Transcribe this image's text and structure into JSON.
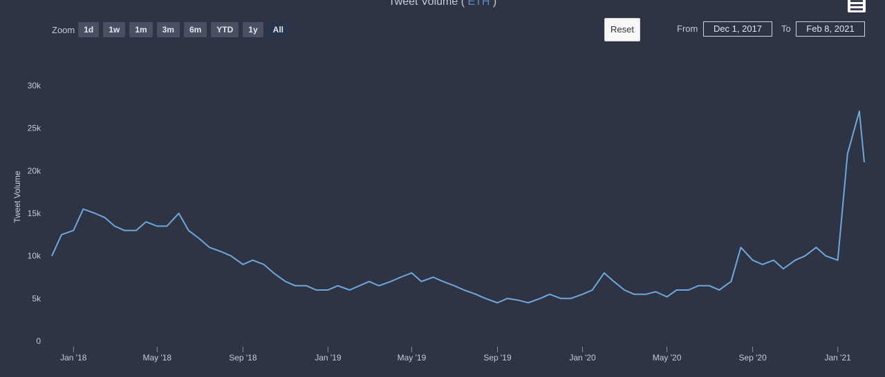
{
  "header": {
    "title_prefix": "Tweet Volume ( ",
    "title_symbol": "ETH",
    "title_suffix": " )",
    "menu_icon": "hamburger-menu-icon"
  },
  "toolbar": {
    "zoom_label": "Zoom",
    "zoom_buttons": [
      "1d",
      "1w",
      "1m",
      "3m",
      "6m",
      "YTD",
      "1y",
      "All"
    ],
    "active_zoom": "All",
    "reset_label": "Reset",
    "from_label": "From",
    "from_value": "Dec 1, 2017",
    "to_label": "To",
    "to_value": "Feb 8, 2021"
  },
  "colors": {
    "background": "#2f3444",
    "series": "#6fa8dc",
    "symbol_accent": "#5b8ecb"
  },
  "chart_data": {
    "type": "line",
    "title": "Tweet Volume ( ETH )",
    "ylabel": "Tweet Volume",
    "xlabel": "",
    "ylim": [
      0,
      32000
    ],
    "y_ticks": [
      "0",
      "5k",
      "10k",
      "15k",
      "20k",
      "25k",
      "30k"
    ],
    "x_ticks": [
      "Jan '18",
      "May '18",
      "Sep '18",
      "Jan '19",
      "May '19",
      "Sep '19",
      "Jan '20",
      "May '20",
      "Sep '20",
      "Jan '21"
    ],
    "grid": false,
    "x_start": "2017-12-01",
    "x_end": "2021-02-08",
    "series": [
      {
        "x": [
          "2017-12-01",
          "2017-12-15",
          "2018-01-01",
          "2018-01-15",
          "2018-02-01",
          "2018-02-15",
          "2018-03-01",
          "2018-03-15",
          "2018-04-01",
          "2018-04-15",
          "2018-05-01",
          "2018-05-15",
          "2018-06-01",
          "2018-06-15",
          "2018-07-01",
          "2018-07-15",
          "2018-08-01",
          "2018-08-15",
          "2018-09-01",
          "2018-09-15",
          "2018-10-01",
          "2018-10-15",
          "2018-11-01",
          "2018-11-15",
          "2018-12-01",
          "2018-12-15",
          "2019-01-01",
          "2019-01-15",
          "2019-02-01",
          "2019-02-15",
          "2019-03-01",
          "2019-03-15",
          "2019-04-01",
          "2019-04-15",
          "2019-05-01",
          "2019-05-15",
          "2019-06-01",
          "2019-06-15",
          "2019-07-01",
          "2019-07-15",
          "2019-08-01",
          "2019-08-15",
          "2019-09-01",
          "2019-09-15",
          "2019-10-01",
          "2019-10-15",
          "2019-11-01",
          "2019-11-15",
          "2019-12-01",
          "2019-12-15",
          "2020-01-01",
          "2020-01-15",
          "2020-02-01",
          "2020-02-15",
          "2020-03-01",
          "2020-03-15",
          "2020-04-01",
          "2020-04-15",
          "2020-05-01",
          "2020-05-15",
          "2020-06-01",
          "2020-06-15",
          "2020-07-01",
          "2020-07-15",
          "2020-08-01",
          "2020-08-15",
          "2020-09-01",
          "2020-09-15",
          "2020-10-01",
          "2020-10-15",
          "2020-11-01",
          "2020-11-15",
          "2020-12-01",
          "2020-12-15",
          "2021-01-01",
          "2021-01-15",
          "2021-02-01",
          "2021-02-08"
        ],
        "values": [
          10000,
          12500,
          13000,
          15500,
          15000,
          14500,
          13500,
          13000,
          13000,
          14000,
          13500,
          13500,
          15000,
          13000,
          12000,
          11000,
          10500,
          10000,
          9000,
          9500,
          9000,
          8000,
          7000,
          6500,
          6500,
          6000,
          6000,
          6500,
          6000,
          6500,
          7000,
          6500,
          7000,
          7500,
          8000,
          7000,
          7500,
          7000,
          6500,
          6000,
          5500,
          5000,
          4500,
          5000,
          4800,
          4500,
          5000,
          5500,
          5000,
          5000,
          5500,
          6000,
          8000,
          7000,
          6000,
          5500,
          5500,
          5800,
          5200,
          6000,
          6000,
          6500,
          6500,
          6000,
          7000,
          11000,
          9500,
          9000,
          9500,
          8500,
          9500,
          10000,
          11000,
          10000,
          9500,
          22000,
          27000,
          21000
        ]
      }
    ]
  }
}
